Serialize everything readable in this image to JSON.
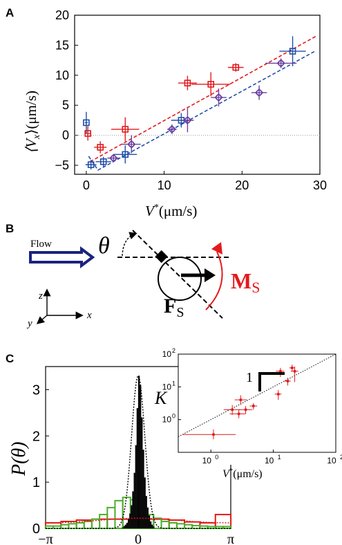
{
  "panel_labels": {
    "a": "A",
    "b": "B",
    "c": "C"
  },
  "colors": {
    "red": "#e31a1c",
    "blue": "#1f4fa8",
    "purple": "#6b3fa0",
    "green": "#4caf2a",
    "black": "#000000",
    "navy": "#1a237e",
    "grey": "#9a9a9a"
  },
  "diagram": {
    "flow_label": "Flow",
    "theta_label": "θ",
    "force_label": "F",
    "force_sub": "S",
    "moment_label": "M",
    "moment_sub": "S",
    "axis_z": "z",
    "axis_x": "x",
    "axis_y": "y"
  },
  "chart_data": [
    {
      "id": "A",
      "type": "scatter",
      "xlabel_main": "V",
      "xlabel_sup": "*",
      "xlabel_unit": "(μm/s)",
      "ylabel_main": "⟨V",
      "ylabel_sub": "x",
      "ylabel_tail": "⟩(μm/s)",
      "xlim": [
        -1.5,
        30
      ],
      "ylim": [
        -6.5,
        20
      ],
      "xticks": [
        0,
        10,
        20,
        30
      ],
      "yticks": [
        -5,
        0,
        5,
        10,
        15,
        20
      ],
      "grid": false,
      "series": [
        {
          "marker": "square",
          "color": "red",
          "points": [
            {
              "x": 0.2,
              "y": 0.3,
              "xerr": 0.3,
              "yerr": 1.2
            },
            {
              "x": 1.8,
              "y": -2.0,
              "xerr": 0.8,
              "yerr": 1.0
            },
            {
              "x": 5.0,
              "y": 1.0,
              "xerr": 1.8,
              "yerr": 2.0
            },
            {
              "x": 13.0,
              "y": 8.7,
              "xerr": 1.2,
              "yerr": 1.2
            },
            {
              "x": 16.0,
              "y": 8.5,
              "xerr": 2.5,
              "yerr": 2.0
            },
            {
              "x": 19.2,
              "y": 11.3,
              "xerr": 1.0,
              "yerr": 0.7
            }
          ]
        },
        {
          "marker": "square",
          "color": "blue",
          "points": [
            {
              "x": 0.0,
              "y": 2.1,
              "xerr": 0.2,
              "yerr": 1.8
            },
            {
              "x": 0.6,
              "y": -4.9,
              "xerr": 0.7,
              "yerr": 0.8
            },
            {
              "x": 2.2,
              "y": -4.4,
              "xerr": 1.0,
              "yerr": 0.8
            },
            {
              "x": 5.0,
              "y": -3.2,
              "xerr": 1.5,
              "yerr": 1.5
            },
            {
              "x": 12.2,
              "y": 2.5,
              "xerr": 1.3,
              "yerr": 1.2
            },
            {
              "x": 26.5,
              "y": 14.0,
              "xerr": 1.7,
              "yerr": 2.5
            }
          ]
        },
        {
          "marker": "diamond",
          "color": "purple",
          "points": [
            {
              "x": 3.5,
              "y": -3.8,
              "xerr": 0.8,
              "yerr": 0.6
            },
            {
              "x": 5.8,
              "y": -1.5,
              "xerr": 1.2,
              "yerr": 1.5
            },
            {
              "x": 11.0,
              "y": 1.0,
              "xerr": 0.6,
              "yerr": 0.8
            },
            {
              "x": 13.0,
              "y": 2.5,
              "xerr": 0.8,
              "yerr": 2.0
            },
            {
              "x": 17.0,
              "y": 6.3,
              "xerr": 1.0,
              "yerr": 1.5
            },
            {
              "x": 22.2,
              "y": 7.1,
              "xerr": 1.0,
              "yerr": 1.2
            },
            {
              "x": 25.0,
              "y": 12.0,
              "xerr": 2.0,
              "yerr": 0.8
            }
          ]
        }
      ],
      "fit_lines": [
        {
          "color": "red",
          "points": [
            [
              0.5,
              -4.4
            ],
            [
              29.5,
              16.5
            ]
          ]
        },
        {
          "color": "blue",
          "points": [
            [
              0.3,
              -3.5
            ],
            [
              1.5,
              -5.8
            ],
            [
              29.5,
              14.1
            ]
          ]
        }
      ],
      "reference_line_y": 0
    },
    {
      "id": "C",
      "type": "histogram",
      "ylabel": "P(θ)",
      "xticks_labels": [
        "−π",
        "0",
        "π"
      ],
      "xticks": [
        -3.1416,
        0,
        3.1416
      ],
      "yticks": [
        0,
        1,
        2,
        3
      ],
      "xlim": [
        -3.1416,
        3.1416
      ],
      "ylim": [
        0,
        3.5
      ],
      "series": [
        {
          "color": "black",
          "bin_width": 0.05,
          "values": [
            0.02,
            0.05,
            0.08,
            0.12,
            0.2,
            0.32,
            0.5,
            0.8,
            1.2,
            1.8,
            2.6,
            3.3,
            3.1,
            2.4,
            1.7,
            1.1,
            0.7,
            0.45,
            0.28,
            0.15,
            0.08,
            0.04
          ]
        },
        {
          "color": "green",
          "bin_width": 0.262,
          "values": [
            0.05,
            0.05,
            0.08,
            0.1,
            0.12,
            0.15,
            0.2,
            0.3,
            0.45,
            0.6,
            0.67,
            0.62,
            0.45,
            0.3,
            0.22,
            0.15,
            0.12,
            0.1,
            0.08,
            0.06,
            0.05,
            0.04,
            0.04,
            0.04
          ]
        },
        {
          "color": "red",
          "bin_width": 0.524,
          "values": [
            0.12,
            0.15,
            0.18,
            0.2,
            0.2,
            0.2,
            0.2,
            0.2,
            0.18,
            0.14,
            0.12,
            0.3
          ]
        }
      ],
      "fit_curves": [
        {
          "color": "black",
          "style": "dotted",
          "kappa": 20
        },
        {
          "color": "red",
          "style": "dotted",
          "kappa": 0.3
        }
      ]
    },
    {
      "id": "C-inset",
      "type": "scatter",
      "scale": "log",
      "ylabel": "K",
      "xlabel_main": "V",
      "xlabel_sup": "*",
      "xlabel_unit": "(μm/s)",
      "xlim": [
        0.3,
        100
      ],
      "ylim": [
        0.1,
        100
      ],
      "xticks": [
        1,
        10,
        100
      ],
      "yticks": [
        1,
        10,
        100
      ],
      "xtick_labels": [
        "10",
        "10",
        "10"
      ],
      "xtick_exps": [
        "0",
        "1",
        "2"
      ],
      "ytick_labels": [
        "10",
        "10",
        "10"
      ],
      "ytick_exps": [
        "0",
        "1",
        "2"
      ],
      "slope_label": "1",
      "reference_line": "y = x",
      "series": [
        {
          "color": "red",
          "points": [
            {
              "x": 1.1,
              "y": 0.35,
              "xlo": 0.35,
              "xhi": 2.5,
              "ylo": 0.25,
              "yhi": 0.5
            },
            {
              "x": 2.2,
              "y": 2.0,
              "xlo": 1.6,
              "xhi": 3.0,
              "ylo": 1.4,
              "yhi": 2.8
            },
            {
              "x": 2.8,
              "y": 1.5,
              "xlo": 2.0,
              "xhi": 3.6,
              "ylo": 1.1,
              "yhi": 2.0
            },
            {
              "x": 3.0,
              "y": 4.0,
              "xlo": 2.4,
              "xhi": 3.8,
              "ylo": 2.8,
              "yhi": 5.5
            },
            {
              "x": 3.6,
              "y": 2.0,
              "xlo": 2.8,
              "xhi": 4.6,
              "ylo": 1.5,
              "yhi": 2.6
            },
            {
              "x": 4.8,
              "y": 2.6,
              "xlo": 4.2,
              "xhi": 5.5,
              "ylo": 2.0,
              "yhi": 3.2
            },
            {
              "x": 12.0,
              "y": 6.0,
              "xlo": 10.5,
              "xhi": 13.5,
              "ylo": 4.0,
              "yhi": 8.0
            },
            {
              "x": 13.0,
              "y": 30.0,
              "xlo": 11.0,
              "xhi": 15.0,
              "ylo": 20.0,
              "yhi": 38.0
            },
            {
              "x": 17.0,
              "y": 15.0,
              "xlo": 15.0,
              "xhi": 19.0,
              "ylo": 11.0,
              "yhi": 19.0
            },
            {
              "x": 20.0,
              "y": 38.0,
              "xlo": 18.0,
              "xhi": 22.0,
              "ylo": 30.0,
              "yhi": 48.0
            },
            {
              "x": 22.0,
              "y": 30.0,
              "xlo": 19.0,
              "xhi": 25.0,
              "ylo": 14.0,
              "yhi": 42.0
            }
          ]
        }
      ]
    }
  ]
}
